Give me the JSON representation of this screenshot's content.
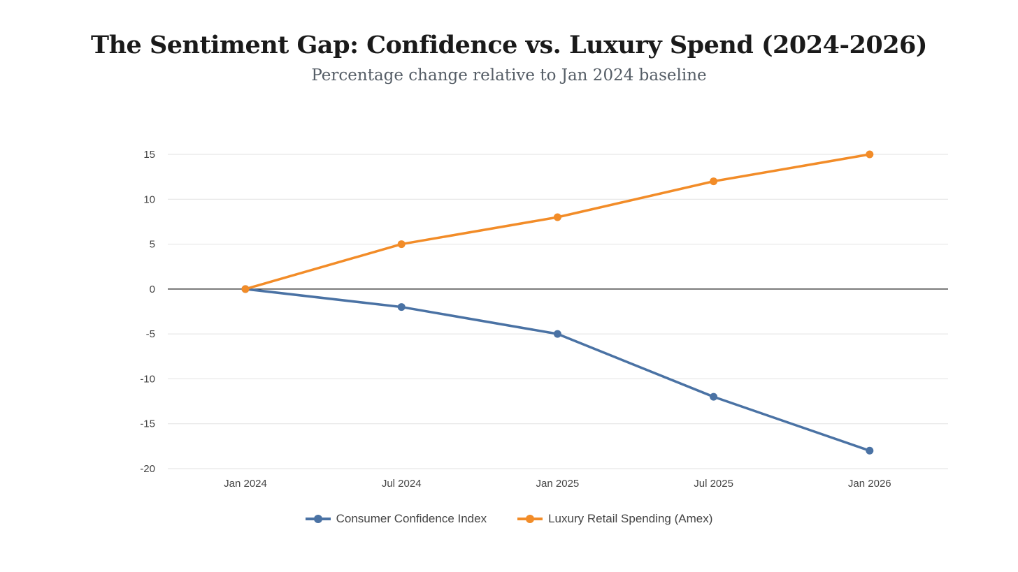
{
  "chart_data": {
    "type": "line",
    "title": "The Sentiment Gap: Confidence vs. Luxury Spend (2024-2026)",
    "subtitle": "Percentage change relative to Jan 2024 baseline",
    "xlabel": "",
    "ylabel": "",
    "categories": [
      "Jan 2024",
      "Jul 2024",
      "Jan 2025",
      "Jul 2025",
      "Jan 2026"
    ],
    "ylim": [
      -20,
      15
    ],
    "yticks": [
      15,
      10,
      5,
      0,
      -5,
      -10,
      -15,
      -20
    ],
    "grid": true,
    "legend": "bottom",
    "series": [
      {
        "name": "Consumer Confidence Index",
        "values": [
          0,
          -2,
          -5,
          -12,
          -18
        ],
        "color": "#4a72a4"
      },
      {
        "name": "Luxury Retail Spending (Amex)",
        "values": [
          0,
          5,
          8,
          12,
          15
        ],
        "color": "#f28c28"
      }
    ]
  }
}
